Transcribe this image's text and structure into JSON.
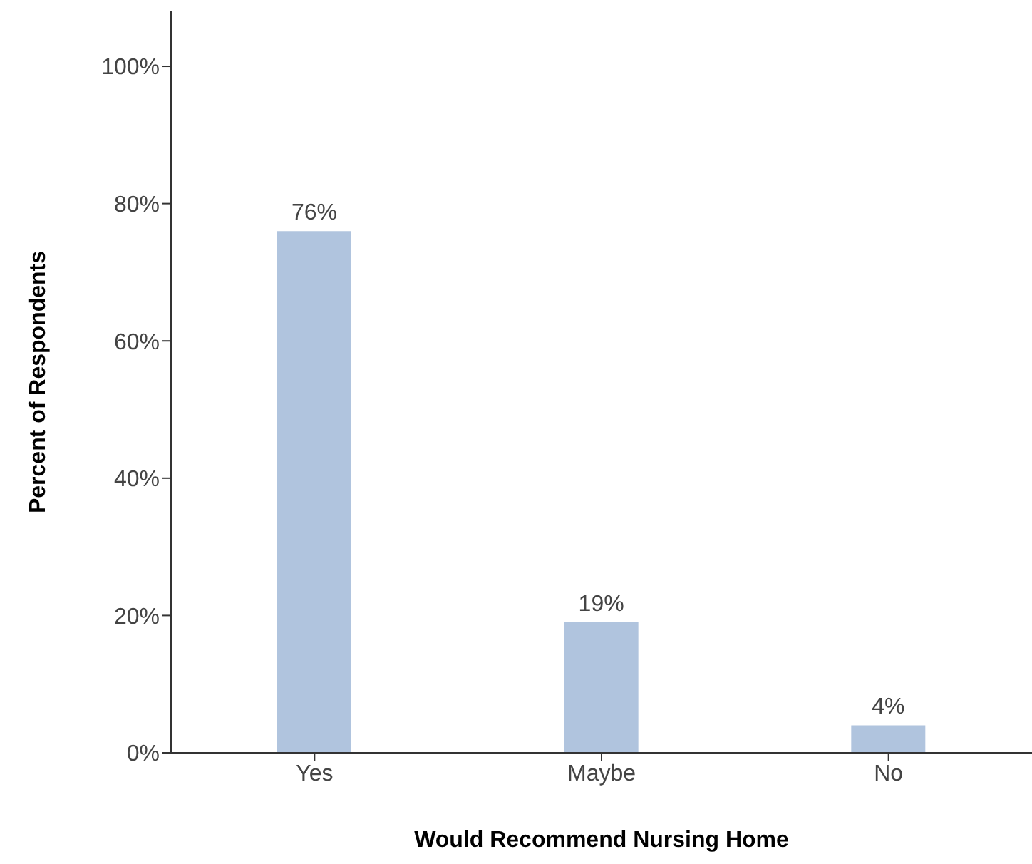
{
  "chart_data": {
    "type": "bar",
    "xlabel": "Would Recommend Nursing Home",
    "ylabel": "Percent of Respondents",
    "categories": [
      "Yes",
      "Maybe",
      "No"
    ],
    "values": [
      76,
      19,
      4
    ],
    "value_labels": [
      "76%",
      "19%",
      "4%"
    ],
    "color": "#b0c4de",
    "ylim": [
      0,
      108
    ],
    "yticks": [
      {
        "value": 0,
        "label": "0%"
      },
      {
        "value": 20,
        "label": "20%"
      },
      {
        "value": 40,
        "label": "40%"
      },
      {
        "value": 60,
        "label": "60%"
      },
      {
        "value": 80,
        "label": "80%"
      },
      {
        "value": 100,
        "label": "100%"
      }
    ],
    "grid": false,
    "legend": false
  }
}
